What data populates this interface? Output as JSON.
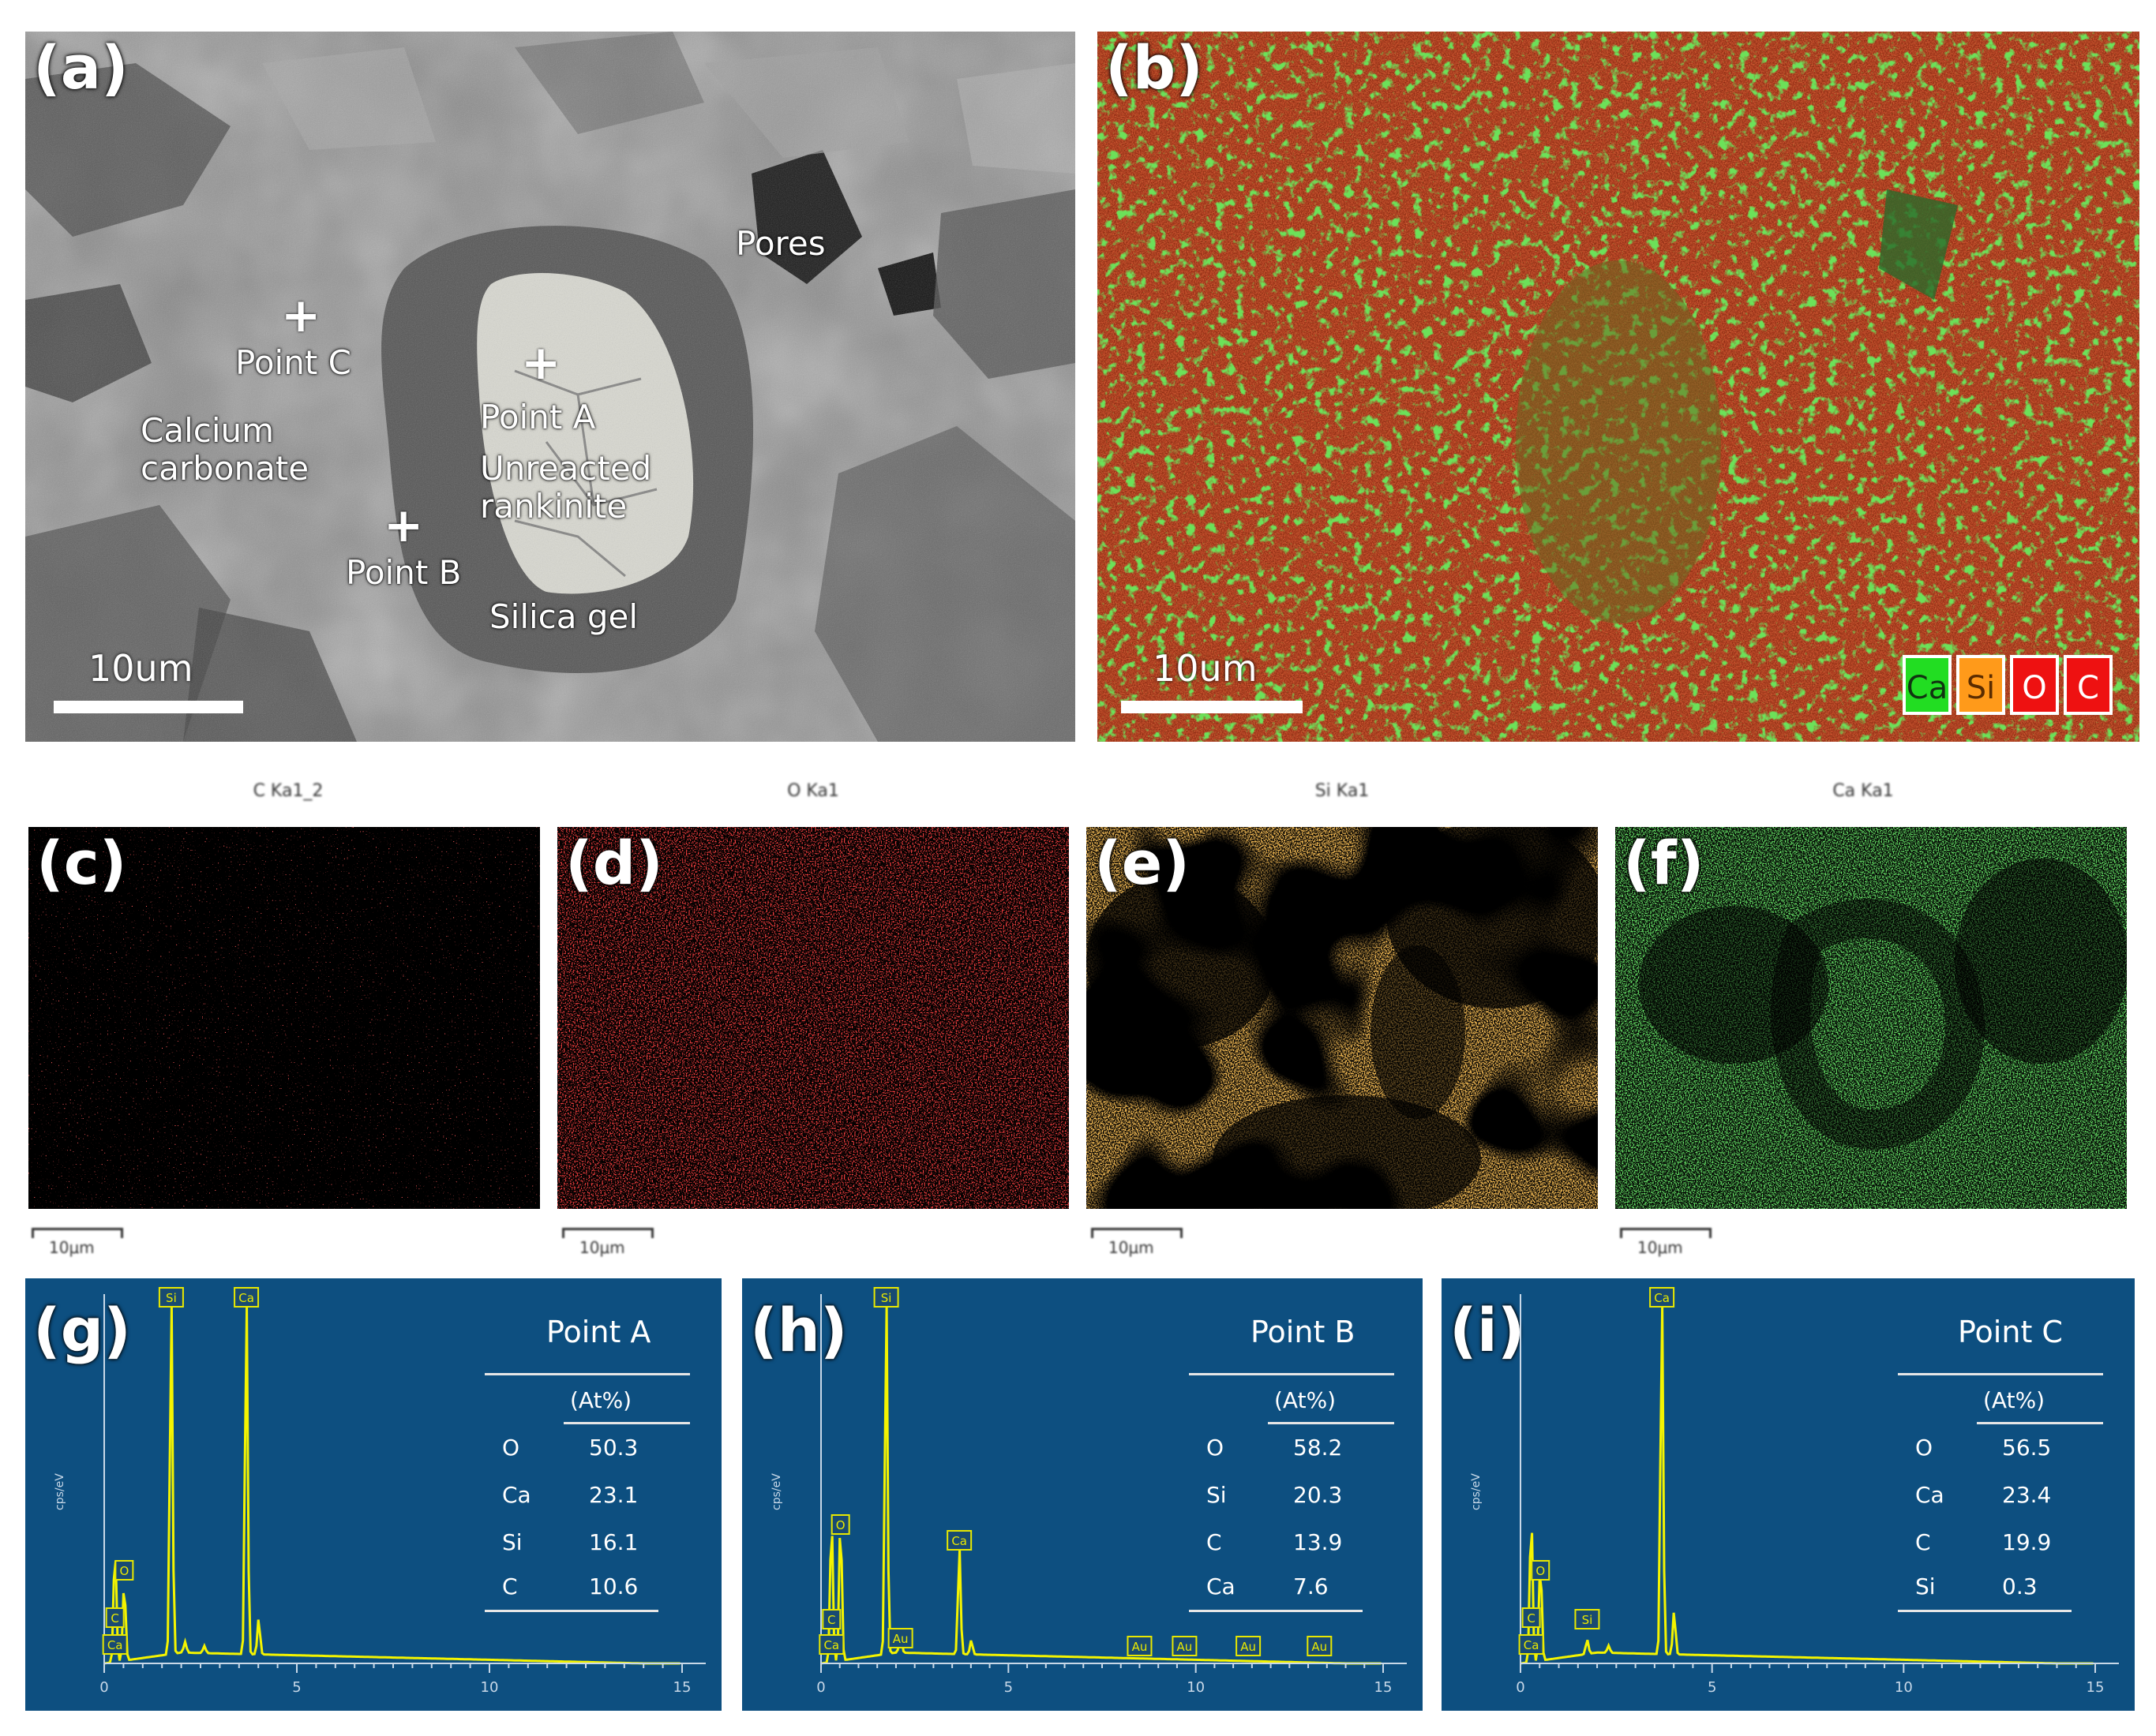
{
  "panel_a": {
    "label": "(a)",
    "annotations": {
      "pores": "Pores",
      "point_c": "Point C",
      "calcium_carbonate": "Calcium\ncarbonate",
      "point_a": "Point A",
      "unreacted_rankinite": "Unreacted\nrankinite",
      "point_b": "Point B",
      "silica_gel": "Silica gel"
    },
    "scale": "10um",
    "cross_symbol": "+"
  },
  "panel_b": {
    "label": "(b)",
    "scale": "10um",
    "legend": [
      {
        "text": "Ca",
        "bg": "#22dd22",
        "fg": "#113311"
      },
      {
        "text": "Si",
        "bg": "#ff9a1a",
        "fg": "#5a2c00"
      },
      {
        "text": "O",
        "bg": "#ee1111",
        "fg": "#ffffff"
      },
      {
        "text": "C",
        "bg": "#ee1111",
        "fg": "#ffffff"
      }
    ]
  },
  "element_maps": [
    {
      "label": "(c)",
      "title": "C Ka1_2",
      "scale": "10μm",
      "color": "#ff1a1a",
      "density": 0.06
    },
    {
      "label": "(d)",
      "title": "O Ka1",
      "scale": "10μm",
      "color": "#e81010",
      "density": 0.32
    },
    {
      "label": "(e)",
      "title": "Si Ka1",
      "scale": "10μm",
      "color": "#ff8c1a",
      "density": 0.6
    },
    {
      "label": "(f)",
      "title": "Ca Ka1",
      "scale": "10μm",
      "color": "#22cc22",
      "density": 0.55
    }
  ],
  "spectra": [
    {
      "label": "(g)",
      "title": "Point A",
      "table_header": "(At%)",
      "rows": [
        [
          "O",
          "50.3"
        ],
        [
          "Ca",
          "23.1"
        ],
        [
          "Si",
          "16.1"
        ],
        [
          "C",
          "10.6"
        ]
      ],
      "ylabel": "cps/eV",
      "x_ticks": [
        "0",
        "5",
        "10",
        "15"
      ],
      "peak_labels": [
        "Si",
        "Ca",
        "O",
        "C",
        "Ca"
      ]
    },
    {
      "label": "(h)",
      "title": "Point B",
      "table_header": "(At%)",
      "rows": [
        [
          "O",
          "58.2"
        ],
        [
          "Si",
          "20.3"
        ],
        [
          "C",
          "13.9"
        ],
        [
          "Ca",
          "7.6"
        ]
      ],
      "ylabel": "cps/eV",
      "x_ticks": [
        "0",
        "5",
        "10",
        "15"
      ],
      "peak_labels": [
        "Si",
        "O",
        "Ca",
        "C",
        "Ca",
        "Au",
        "Au",
        "Au",
        "Au",
        "Au"
      ]
    },
    {
      "label": "(i)",
      "title": "Point C",
      "table_header": "(At%)",
      "rows": [
        [
          "O",
          "56.5"
        ],
        [
          "Ca",
          "23.4"
        ],
        [
          "C",
          "19.9"
        ],
        [
          "Si",
          "0.3"
        ]
      ],
      "ylabel": "cps/eV",
      "x_ticks": [
        "0",
        "5",
        "10",
        "15"
      ],
      "peak_labels": [
        "Ca",
        "O",
        "C",
        "Si",
        "Ca"
      ]
    }
  ]
}
